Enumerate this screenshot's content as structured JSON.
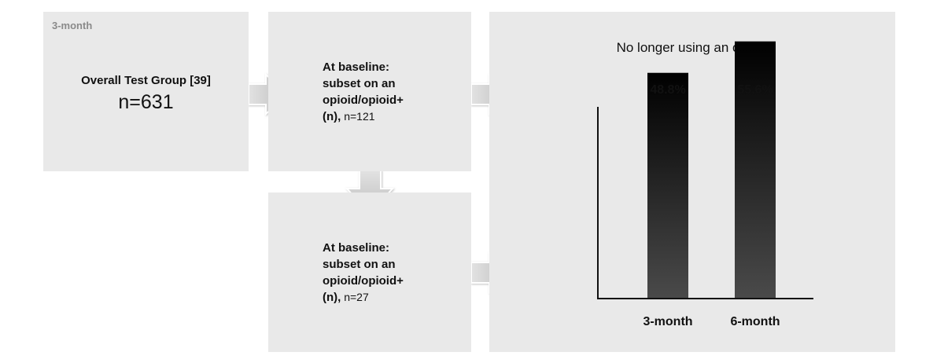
{
  "overall": {
    "tag": "3-month",
    "title": "Overall Test Group [39]",
    "n": "n=631"
  },
  "baseline_121": {
    "line1": "At baseline:",
    "line2": "subset on an",
    "line3": "opioid/opioid+",
    "line4_bold": "(n),",
    "line4_n": " n=121"
  },
  "baseline_27": {
    "line1": "At baseline:",
    "line2": "subset on an",
    "line3": "opioid/opioid+",
    "line4_bold": "(n),",
    "line4_n": " n=27"
  },
  "chart_data": {
    "type": "bar",
    "title": "No longer using an opioid",
    "categories": [
      "3-month",
      "6-month"
    ],
    "values": [
      48.8,
      55.6
    ],
    "value_labels": [
      "48.8%",
      "55.6%"
    ],
    "ylim": [
      0,
      62
    ],
    "grid": false,
    "colors": {
      "bar_top": "#000000",
      "bar_bottom": "#4a4a4a",
      "axis": "#111111"
    }
  },
  "colors": {
    "box": "#e9e9e9",
    "arrow": "#c8c8c8"
  }
}
